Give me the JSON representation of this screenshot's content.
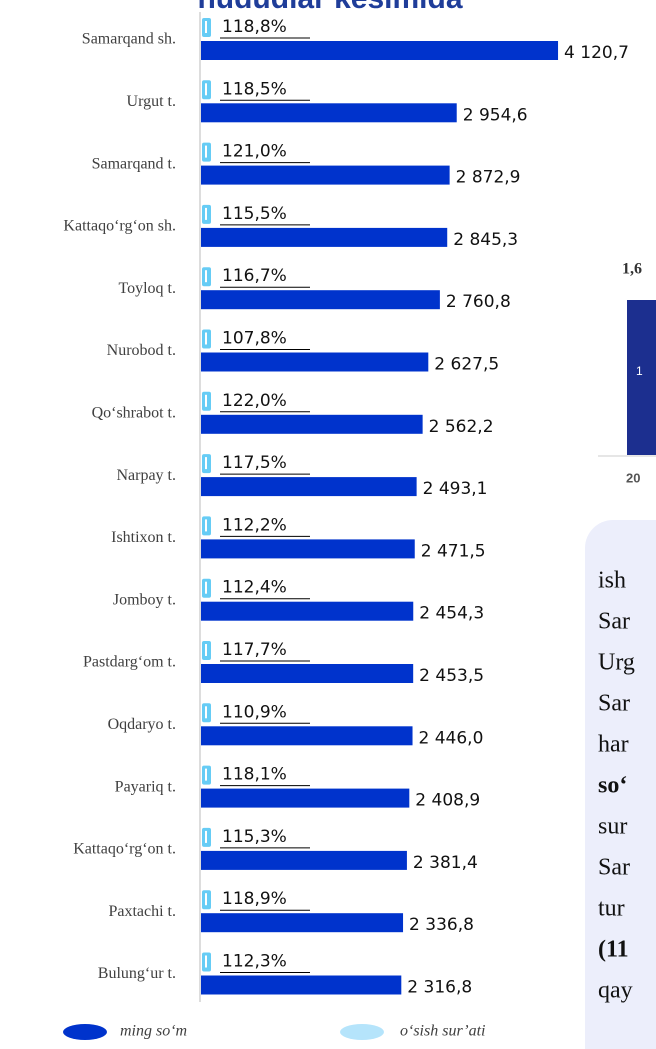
{
  "chart_data": {
    "type": "barh",
    "title": "hududlar kesimida",
    "categories": [
      "Samarqand sh.",
      "Urgut t.",
      "Samarqand t.",
      "Kattaqo‘rg‘on sh.",
      "Toyloq t.",
      "Nurobod t.",
      "Qo‘shrabot t.",
      "Narpay t.",
      "Ishtixon t.",
      "Jomboy t.",
      "Pastdarg‘om t.",
      "Oqdaryo t.",
      "Payariq t.",
      "Kattaqo‘rg‘on t.",
      "Paxtachi t.",
      "Bulung‘ur t."
    ],
    "series": [
      {
        "name": "ming so‘m",
        "color": "#0033cc",
        "values": [
          4120.7,
          2954.6,
          2872.9,
          2845.3,
          2760.8,
          2627.5,
          2562.2,
          2493.1,
          2471.5,
          2454.3,
          2453.5,
          2446.0,
          2408.9,
          2381.4,
          2336.8,
          2316.8
        ],
        "value_labels": [
          "4 120,7",
          "2 954,6",
          "2 872,9",
          "2 845,3",
          "2 760,8",
          "2 627,5",
          "2 562,2",
          "2 493,1",
          "2 471,5",
          "2 454,3",
          "2 453,5",
          "2 446,0",
          "2 408,9",
          "2 381,4",
          "2 336,8",
          "2 316,8"
        ]
      },
      {
        "name": "o‘sish sur’ati",
        "color": "#66ccf5",
        "values": [
          118.8,
          118.5,
          121.0,
          115.5,
          116.7,
          107.8,
          122.0,
          117.5,
          112.2,
          112.4,
          117.7,
          110.9,
          118.1,
          115.3,
          118.9,
          112.3
        ],
        "value_labels": [
          "118,8%",
          "118,5%",
          "121,0%",
          "115,5%",
          "116,7%",
          "107,8%",
          "122,0%",
          "117,5%",
          "112,2%",
          "112,4%",
          "117,7%",
          "110,9%",
          "118,1%",
          "115,3%",
          "118,9%",
          "112,3%"
        ]
      }
    ],
    "xlim": [
      0,
      4500
    ]
  },
  "side": {
    "value": "1,6",
    "bar_label": "1",
    "year": "20",
    "text_lines": [
      "ish",
      "Sar",
      "Urg",
      "Sar",
      "har",
      "so‘",
      "sur",
      "Sar",
      "tur",
      "(11",
      "qay"
    ]
  }
}
